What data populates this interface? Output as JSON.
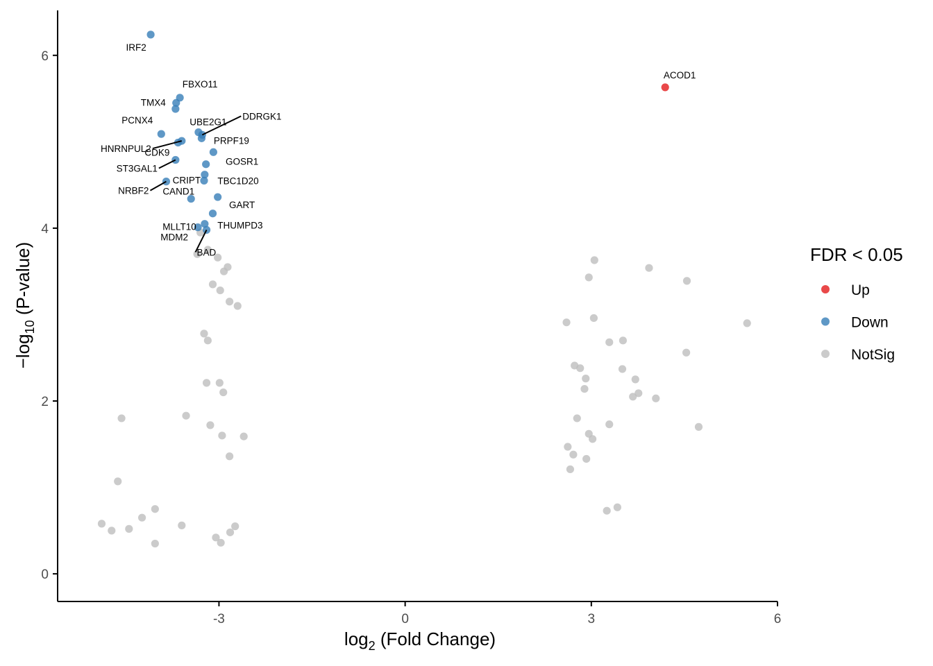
{
  "chart_data": {
    "type": "scatter",
    "xlabel_main": "log",
    "xlabel_sub": "2",
    "xlabel_rest": " (Fold Change)",
    "ylabel_main": "−log",
    "ylabel_sub": "10",
    "ylabel_rest": " (P-value)",
    "xlim": [
      -5.6,
      6.0
    ],
    "ylim": [
      -0.32,
      6.52
    ],
    "xticks": [
      -3,
      0,
      3,
      6
    ],
    "xtick_labels": [
      "-3",
      "0",
      "3",
      "6"
    ],
    "yticks": [
      0,
      2,
      4,
      6
    ],
    "ytick_labels": [
      "0",
      "2",
      "4",
      "6"
    ],
    "grid": false,
    "legend": {
      "title": "FDR < 0.05",
      "placement": "right",
      "entries": [
        {
          "label": "Up",
          "color": "#e41a1c"
        },
        {
          "label": "Down",
          "color": "#377eb8"
        },
        {
          "label": "NotSig",
          "color": "#bebebe"
        }
      ]
    },
    "series": [
      {
        "name": "Up",
        "color": "#e41a1c",
        "points": [
          {
            "x": 4.19,
            "y": 5.63,
            "label": "ACOD1"
          }
        ]
      },
      {
        "name": "Down",
        "color": "#377eb8",
        "points": [
          {
            "x": -4.1,
            "y": 6.24,
            "label": "IRF2"
          },
          {
            "x": -3.63,
            "y": 5.51,
            "label": "FBXO11"
          },
          {
            "x": -3.69,
            "y": 5.45,
            "label": "TMX4"
          },
          {
            "x": -3.7,
            "y": 5.38,
            "label": ""
          },
          {
            "x": -3.33,
            "y": 5.11,
            "label": "UBE2G1"
          },
          {
            "x": -3.27,
            "y": 5.08,
            "label": "DDRGK1"
          },
          {
            "x": -3.93,
            "y": 5.09,
            "label": "PCNX4"
          },
          {
            "x": -3.28,
            "y": 5.04,
            "label": ""
          },
          {
            "x": -3.6,
            "y": 5.01,
            "label": "HNRNPUL2"
          },
          {
            "x": -3.09,
            "y": 4.88,
            "label": "PRPF19"
          },
          {
            "x": -3.21,
            "y": 4.74,
            "label": "GOSR1"
          },
          {
            "x": -3.7,
            "y": 4.79,
            "label": "ST3GAL1"
          },
          {
            "x": -3.23,
            "y": 4.62,
            "label": "CRIPT"
          },
          {
            "x": -3.24,
            "y": 4.55,
            "label": "TBC1D20"
          },
          {
            "x": -3.85,
            "y": 4.54,
            "label": "NRBF2"
          },
          {
            "x": -3.02,
            "y": 4.36,
            "label": "GART"
          },
          {
            "x": -3.45,
            "y": 4.34,
            "label": "CAND1"
          },
          {
            "x": -3.1,
            "y": 4.17,
            "label": "MLLT10"
          },
          {
            "x": -3.23,
            "y": 4.05,
            "label": "THUMPD3"
          },
          {
            "x": -3.34,
            "y": 4.01,
            "label": "MDM2"
          },
          {
            "x": -3.2,
            "y": 3.98,
            "label": "BAD"
          },
          {
            "x": -3.66,
            "y": 4.99,
            "label": "CDK9"
          }
        ]
      },
      {
        "name": "NotSig",
        "color": "#bebebe",
        "points": [
          {
            "x": -4.89,
            "y": 0.58
          },
          {
            "x": -4.73,
            "y": 0.5
          },
          {
            "x": -4.45,
            "y": 0.52
          },
          {
            "x": -4.24,
            "y": 0.65
          },
          {
            "x": -4.03,
            "y": 0.75
          },
          {
            "x": -4.03,
            "y": 0.35
          },
          {
            "x": -3.6,
            "y": 0.56
          },
          {
            "x": -4.63,
            "y": 1.07
          },
          {
            "x": -4.57,
            "y": 1.8
          },
          {
            "x": -3.53,
            "y": 1.83
          },
          {
            "x": -3.14,
            "y": 1.72
          },
          {
            "x": -2.95,
            "y": 1.6
          },
          {
            "x": -2.6,
            "y": 1.59
          },
          {
            "x": -2.74,
            "y": 0.55
          },
          {
            "x": -2.82,
            "y": 0.48
          },
          {
            "x": -2.97,
            "y": 0.36
          },
          {
            "x": -3.05,
            "y": 0.42
          },
          {
            "x": -2.83,
            "y": 1.36
          },
          {
            "x": -3.2,
            "y": 2.21
          },
          {
            "x": -3.24,
            "y": 2.78
          },
          {
            "x": -3.18,
            "y": 2.7
          },
          {
            "x": -2.99,
            "y": 2.21
          },
          {
            "x": -2.93,
            "y": 2.1
          },
          {
            "x": -3.35,
            "y": 3.7
          },
          {
            "x": -3.18,
            "y": 3.75
          },
          {
            "x": -3.02,
            "y": 3.66
          },
          {
            "x": -2.86,
            "y": 3.55
          },
          {
            "x": -2.7,
            "y": 3.1
          },
          {
            "x": -3.1,
            "y": 3.35
          },
          {
            "x": -2.98,
            "y": 3.28
          },
          {
            "x": -2.83,
            "y": 3.15
          },
          {
            "x": -3.3,
            "y": 3.95
          },
          {
            "x": -2.92,
            "y": 3.5
          },
          {
            "x": 2.6,
            "y": 2.91
          },
          {
            "x": 2.96,
            "y": 3.43
          },
          {
            "x": 3.05,
            "y": 3.63
          },
          {
            "x": 3.04,
            "y": 2.96
          },
          {
            "x": 3.29,
            "y": 2.68
          },
          {
            "x": 3.51,
            "y": 2.7
          },
          {
            "x": 3.93,
            "y": 3.54
          },
          {
            "x": 4.54,
            "y": 3.39
          },
          {
            "x": 5.51,
            "y": 2.9
          },
          {
            "x": 4.53,
            "y": 2.56
          },
          {
            "x": 3.5,
            "y": 2.37
          },
          {
            "x": 3.71,
            "y": 2.25
          },
          {
            "x": 3.67,
            "y": 2.05
          },
          {
            "x": 3.76,
            "y": 2.09
          },
          {
            "x": 4.04,
            "y": 2.03
          },
          {
            "x": 4.73,
            "y": 1.7
          },
          {
            "x": 3.29,
            "y": 1.73
          },
          {
            "x": 3.25,
            "y": 0.73
          },
          {
            "x": 3.42,
            "y": 0.77
          },
          {
            "x": 2.73,
            "y": 2.41
          },
          {
            "x": 2.82,
            "y": 2.38
          },
          {
            "x": 2.91,
            "y": 2.26
          },
          {
            "x": 2.89,
            "y": 2.14
          },
          {
            "x": 2.96,
            "y": 1.62
          },
          {
            "x": 3.02,
            "y": 1.56
          },
          {
            "x": 2.92,
            "y": 1.33
          },
          {
            "x": 2.71,
            "y": 1.38
          },
          {
            "x": 2.62,
            "y": 1.47
          },
          {
            "x": 2.66,
            "y": 1.21
          },
          {
            "x": 2.77,
            "y": 1.8
          }
        ]
      }
    ]
  }
}
